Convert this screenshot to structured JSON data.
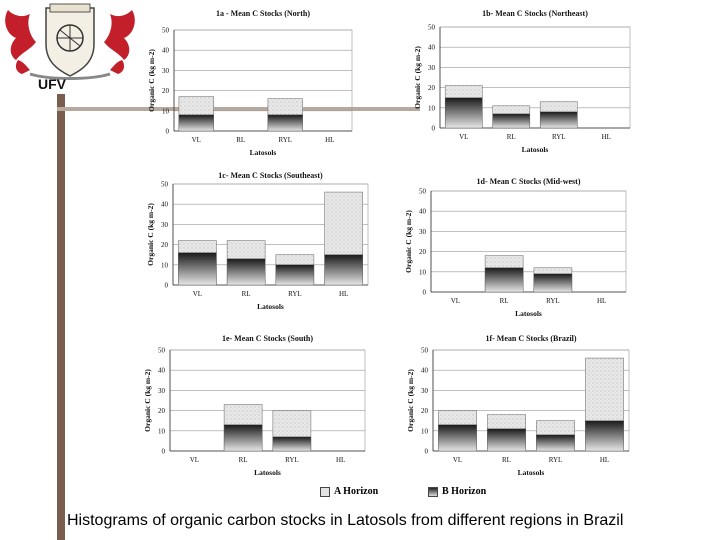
{
  "logo": {
    "text": "UFV",
    "icon": "ufv-coat-of-arms-icon"
  },
  "caption": "Histograms of organic carbon stocks in Latosols from different regions in Brazil",
  "legend": {
    "a_label": "A Horizon",
    "b_label": "B Horizon"
  },
  "chart_data": [
    {
      "type": "bar",
      "title": "1a - Mean C Stocks (North)",
      "xlabel": "Latosols",
      "ylabel": "Organic C (kg m-2)",
      "categories": [
        "VL",
        "RL",
        "RYL",
        "HL"
      ],
      "ylim": [
        0,
        50
      ],
      "yticks": [
        0,
        10,
        20,
        30,
        40,
        50
      ],
      "series": [
        {
          "name": "A Horizon",
          "values": [
            17,
            0,
            16,
            0
          ]
        },
        {
          "name": "B Horizon",
          "values": [
            8,
            0,
            8,
            0
          ]
        }
      ]
    },
    {
      "type": "bar",
      "title": "1b- Mean C Stocks (Northeast)",
      "xlabel": "Latosols",
      "ylabel": "Organic C (kg m-2)",
      "categories": [
        "VL",
        "RL",
        "RYL",
        "HL"
      ],
      "ylim": [
        0,
        50
      ],
      "yticks": [
        0,
        10,
        20,
        30,
        40,
        50
      ],
      "series": [
        {
          "name": "A Horizon",
          "values": [
            21,
            11,
            13,
            0
          ]
        },
        {
          "name": "B Horizon",
          "values": [
            15,
            7,
            8,
            0
          ]
        }
      ]
    },
    {
      "type": "bar",
      "title": "1c- Mean C Stocks (Southeast)",
      "xlabel": "Latosols",
      "ylabel": "Organic C (kg m-2)",
      "categories": [
        "VL",
        "RL",
        "RYL",
        "HL"
      ],
      "ylim": [
        0,
        50
      ],
      "yticks": [
        0,
        10,
        20,
        30,
        40,
        50
      ],
      "series": [
        {
          "name": "A Horizon",
          "values": [
            22,
            22,
            15,
            46
          ]
        },
        {
          "name": "B Horizon",
          "values": [
            16,
            13,
            10,
            15
          ]
        }
      ]
    },
    {
      "type": "bar",
      "title": "1d- Mean C Stocks (Mid-west)",
      "xlabel": "Latosols",
      "ylabel": "Organic C (kg m-2)",
      "categories": [
        "VL",
        "RL",
        "RYL",
        "HL"
      ],
      "ylim": [
        0,
        50
      ],
      "yticks": [
        0,
        10,
        20,
        30,
        40,
        50
      ],
      "series": [
        {
          "name": "A Horizon",
          "values": [
            0,
            18,
            12,
            0
          ]
        },
        {
          "name": "B Horizon",
          "values": [
            0,
            12,
            9,
            0
          ]
        }
      ]
    },
    {
      "type": "bar",
      "title": "1e- Mean C Stocks (South)",
      "xlabel": "Latosols",
      "ylabel": "Organic C (kg m-2)",
      "categories": [
        "VL",
        "RL",
        "RYL",
        "HL"
      ],
      "ylim": [
        0,
        50
      ],
      "yticks": [
        0,
        10,
        20,
        30,
        40,
        50
      ],
      "series": [
        {
          "name": "A Horizon",
          "values": [
            0,
            23,
            20,
            0
          ]
        },
        {
          "name": "B Horizon",
          "values": [
            0,
            13,
            7,
            0
          ]
        }
      ]
    },
    {
      "type": "bar",
      "title": "1f- Mean C Stocks (Brazil)",
      "xlabel": "Latosols",
      "ylabel": "Organic C (kg m-2)",
      "categories": [
        "VL",
        "RL",
        "RYL",
        "HL"
      ],
      "ylim": [
        0,
        50
      ],
      "yticks": [
        0,
        10,
        20,
        30,
        40,
        50
      ],
      "series": [
        {
          "name": "A Horizon",
          "values": [
            20,
            18,
            15,
            46
          ]
        },
        {
          "name": "B Horizon",
          "values": [
            13,
            11,
            8,
            15
          ]
        }
      ]
    }
  ]
}
